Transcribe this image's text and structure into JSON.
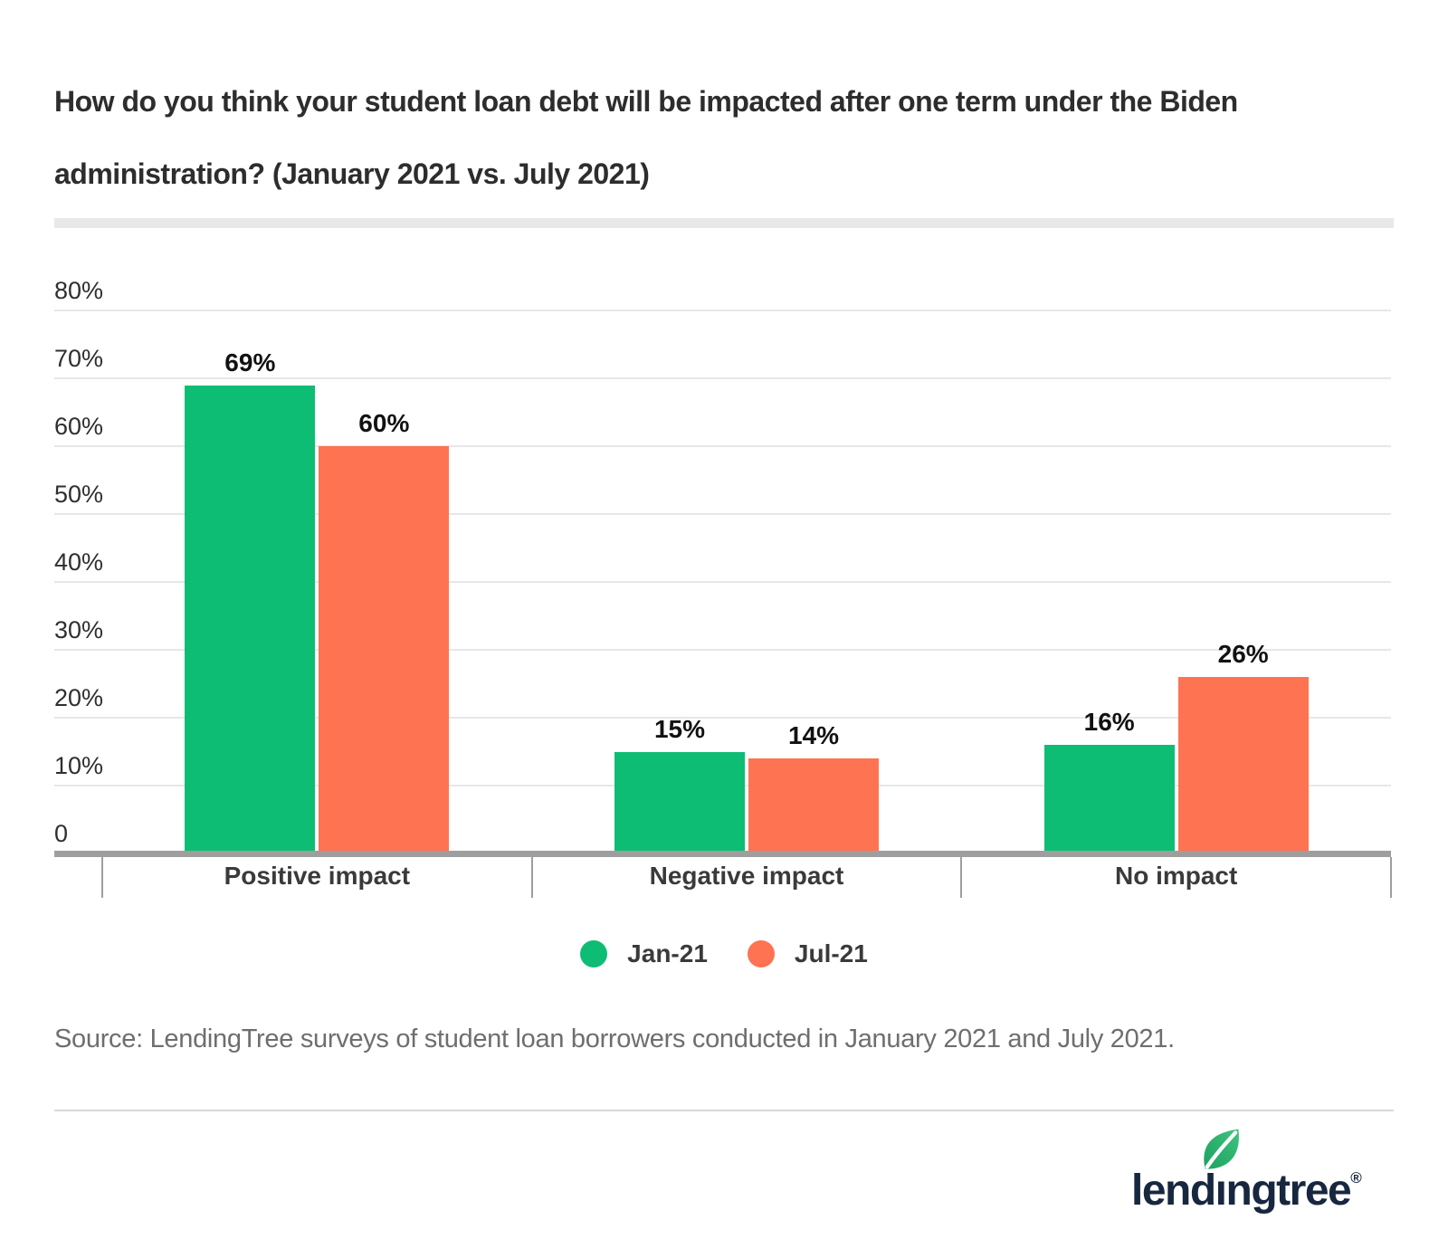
{
  "title": {
    "line1": "How do you think your student loan debt will be impacted after one term under the Biden",
    "line2": "administration? (January 2021 vs. July 2021)"
  },
  "chart_data": {
    "type": "bar",
    "title": "How do you think your student loan debt will be impacted after one term under the Biden administration? (January 2021 vs. July 2021)",
    "categories": [
      "Positive impact",
      "Negative impact",
      "No impact"
    ],
    "series": [
      {
        "name": "Jan-21",
        "color": "#0dbd74",
        "values": [
          69,
          15,
          16
        ]
      },
      {
        "name": "Jul-21",
        "color": "#fe7351",
        "values": [
          60,
          14,
          26
        ]
      }
    ],
    "value_label_suffix": "%",
    "ytick_values": [
      0,
      10,
      20,
      30,
      40,
      50,
      60,
      70,
      80
    ],
    "ytick_labels": [
      "0",
      "10%",
      "20%",
      "30%",
      "40%",
      "50%",
      "60%",
      "70%",
      "80%"
    ],
    "ylim": [
      0,
      80
    ],
    "grid": true,
    "legend_position": "bottom",
    "colors": {
      "grid": "#e7e7e7",
      "axis": "#9e9e9e",
      "value_label": "#121212",
      "category_label": "#3a3a3a"
    }
  },
  "source": "Source: LendingTree surveys of student loan borrowers conducted in January 2021 and July 2021.",
  "logo": {
    "part1": "lend",
    "dotless_i": "ı",
    "part2": "ngtree",
    "registered": "®",
    "text_color": "#182740",
    "leaf_color_dark": "#1ca05f",
    "leaf_color_light": "#3fc47e"
  }
}
